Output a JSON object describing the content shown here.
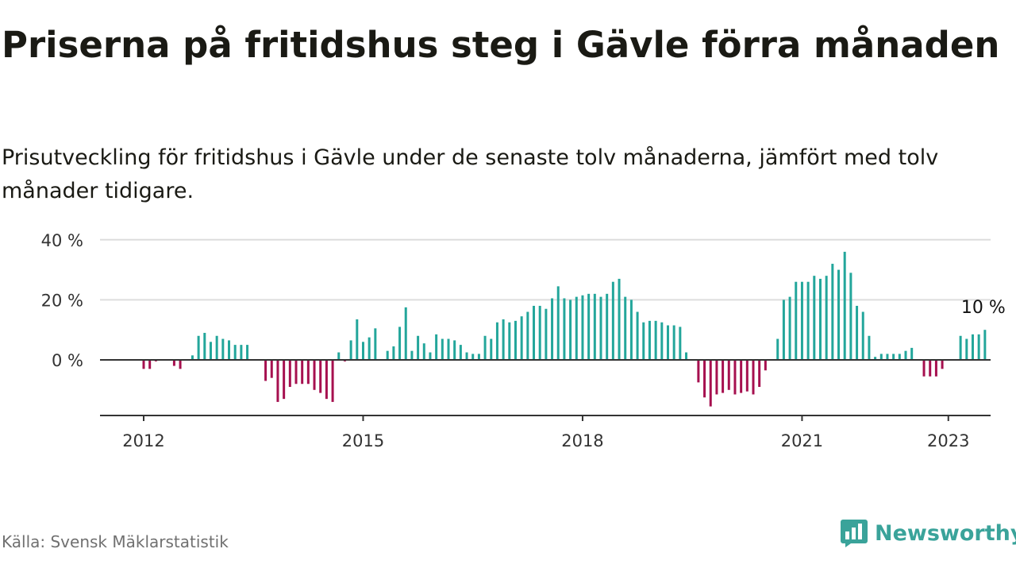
{
  "title": "Priserna på fritidshus steg i Gävle förra månaden",
  "subtitle": "Prisutveckling för fritidshus i Gävle under de senaste tolv månaderna, jämfört med tolv månader tidigare.",
  "source": "Källa: Svensk Mäklarstatistik",
  "brand": {
    "name": "Newsworthy",
    "logo_icon": "bar-chart-logo-icon"
  },
  "colors": {
    "positive": "#23a69b",
    "negative": "#a6104f",
    "grid": "#dddddd",
    "axis": "#333333",
    "brand": "#3aa39a"
  },
  "chart_data": {
    "type": "bar",
    "title": "Priserna på fritidshus steg i Gävle förra månaden",
    "subtitle": "Prisutveckling för fritidshus i Gävle under de senaste tolv månaderna, jämfört med tolv månader tidigare.",
    "start": "2011-07",
    "frequency": "monthly",
    "ylim": [
      -18,
      40
    ],
    "yticks": [
      {
        "value": 40,
        "label": "40 %"
      },
      {
        "value": 20,
        "label": "20 %"
      },
      {
        "value": 0,
        "label": "0 %"
      }
    ],
    "xticks": [
      {
        "value": "2012-01",
        "label": "2012"
      },
      {
        "value": "2015-01",
        "label": "2015"
      },
      {
        "value": "2018-01",
        "label": "2018"
      },
      {
        "value": "2021-01",
        "label": "2021"
      },
      {
        "value": "2023-01",
        "label": "2023"
      }
    ],
    "grid": true,
    "last_label": "10 %",
    "values": [
      0,
      0,
      0,
      0,
      0,
      0,
      -3,
      -3,
      -0.5,
      0,
      0,
      -2,
      -3,
      0,
      1.5,
      8,
      9,
      6,
      8,
      7,
      6.5,
      5,
      5,
      5,
      0,
      0,
      -7,
      -6,
      -14,
      -13,
      -9,
      -8,
      -8,
      -8,
      -10,
      -11,
      -13,
      -14,
      2.5,
      -0.5,
      6.5,
      13.5,
      6,
      7.5,
      10.5,
      0,
      3,
      4.5,
      11,
      17.5,
      3,
      8,
      5.5,
      2.5,
      8.5,
      7,
      7,
      6.5,
      5,
      2.5,
      2,
      2,
      8,
      7,
      12.5,
      13.5,
      12.5,
      13,
      14.5,
      16,
      18,
      18,
      17,
      20.5,
      24.5,
      20.5,
      20,
      21,
      21.5,
      22,
      22,
      21,
      22,
      26,
      27,
      21,
      20,
      16,
      12.5,
      13,
      13,
      12.5,
      11.5,
      11.5,
      11,
      2.5,
      0,
      -7.5,
      -12.5,
      -15.5,
      -11.5,
      -11,
      -10,
      -11.5,
      -11,
      -10.5,
      -11.5,
      -9,
      -3.5,
      0,
      7,
      20,
      21,
      26,
      26,
      26,
      28,
      27,
      28,
      32,
      30,
      36,
      29,
      18,
      16,
      8,
      1,
      2,
      2,
      2,
      2,
      3,
      4,
      0,
      -5.5,
      -5.5,
      -5.5,
      -3,
      0,
      0,
      8,
      7,
      8.5,
      8.5,
      10
    ]
  }
}
